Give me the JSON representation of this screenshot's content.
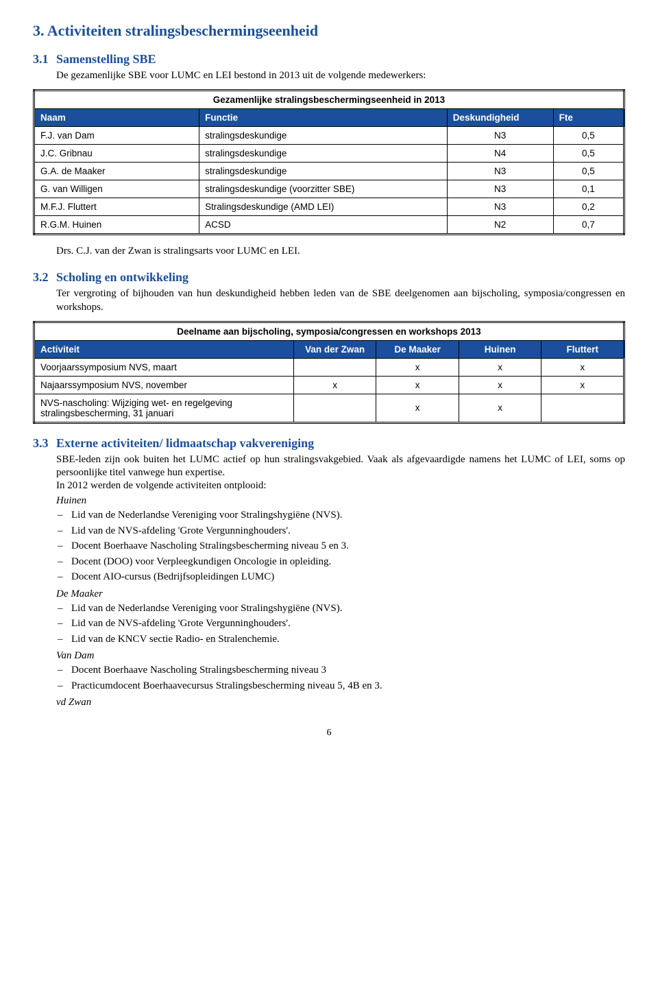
{
  "section": {
    "number": "3.",
    "title": "Activiteiten stralingsbeschermingseenheid"
  },
  "s31": {
    "num": "3.1",
    "title": "Samenstelling SBE",
    "intro": "De gezamenlijke SBE voor LUMC en LEI bestond in 2013 uit de volgende medewerkers:",
    "table": {
      "caption": "Gezamenlijke stralingsbeschermingseenheid in 2013",
      "headers": [
        "Naam",
        "Functie",
        "Deskundigheid",
        "Fte"
      ],
      "rows": [
        [
          "F.J. van Dam",
          "stralingsdeskundige",
          "N3",
          "0,5"
        ],
        [
          "J.C. Gribnau",
          "stralingsdeskundige",
          "N4",
          "0,5"
        ],
        [
          "G.A. de Maaker",
          "stralingsdeskundige",
          "N3",
          "0,5"
        ],
        [
          "G. van Willigen",
          "stralingsdeskundige (voorzitter SBE)",
          "N3",
          "0,1"
        ],
        [
          "M.F.J. Fluttert",
          "Stralingsdeskundige (AMD LEI)",
          "N3",
          "0,2"
        ],
        [
          "R.G.M. Huinen",
          "ACSD",
          "N2",
          "0,7"
        ]
      ]
    },
    "after": "Drs. C.J. van der Zwan is stralingsarts voor LUMC en LEI."
  },
  "s32": {
    "num": "3.2",
    "title": "Scholing en ontwikkeling",
    "intro": "Ter vergroting of bijhouden van hun deskundigheid hebben leden van de SBE deelgenomen aan bijscholing, symposia/congressen en workshops.",
    "table": {
      "caption": "Deelname aan bijscholing, symposia/congressen en workshops 2013",
      "headers": [
        "Activiteit",
        "Van der Zwan",
        "De Maaker",
        "Huinen",
        "Fluttert"
      ],
      "rows": [
        [
          "Voorjaarssymposium NVS, maart",
          "",
          "x",
          "x",
          "x"
        ],
        [
          "Najaarssymposium NVS, november",
          "x",
          "x",
          "x",
          "x"
        ],
        [
          "NVS-nascholing: Wijziging wet- en regelgeving stralingsbescherming, 31 januari",
          "",
          "x",
          "x",
          ""
        ]
      ]
    }
  },
  "s33": {
    "num": "3.3",
    "title": "Externe activiteiten/ lidmaatschap vakvereniging",
    "intro": "SBE-leden zijn ook buiten het LUMC actief op hun stralingsvakgebied. Vaak als afgevaardigde namens het LUMC of LEI, soms op persoonlijke titel vanwege hun expertise.",
    "intro2": "In 2012 werden de volgende activiteiten ontplooid:",
    "people": [
      {
        "name": "Huinen",
        "items": [
          "Lid van de Nederlandse Vereniging voor Stralingshygiëne (NVS).",
          "Lid van de NVS-afdeling 'Grote Vergunninghouders'.",
          "Docent Boerhaave Nascholing Stralingsbescherming niveau 5 en 3.",
          "Docent (DOO) voor Verpleegkundigen Oncologie in opleiding.",
          "Docent AIO-cursus (Bedrijfsopleidingen LUMC)"
        ]
      },
      {
        "name": "De Maaker",
        "items": [
          "Lid van de Nederlandse Vereniging voor Stralingshygiëne (NVS).",
          "Lid van de NVS-afdeling 'Grote Vergunninghouders'.",
          "Lid van de KNCV sectie Radio- en Stralenchemie."
        ]
      },
      {
        "name": "Van Dam",
        "items": [
          "Docent Boerhaave Nascholing Stralingsbescherming niveau 3",
          "Practicumdocent Boerhaavecursus Stralingsbescherming niveau 5, 4B en 3."
        ]
      },
      {
        "name": "vd Zwan",
        "items": []
      }
    ]
  },
  "pageNumber": "6"
}
